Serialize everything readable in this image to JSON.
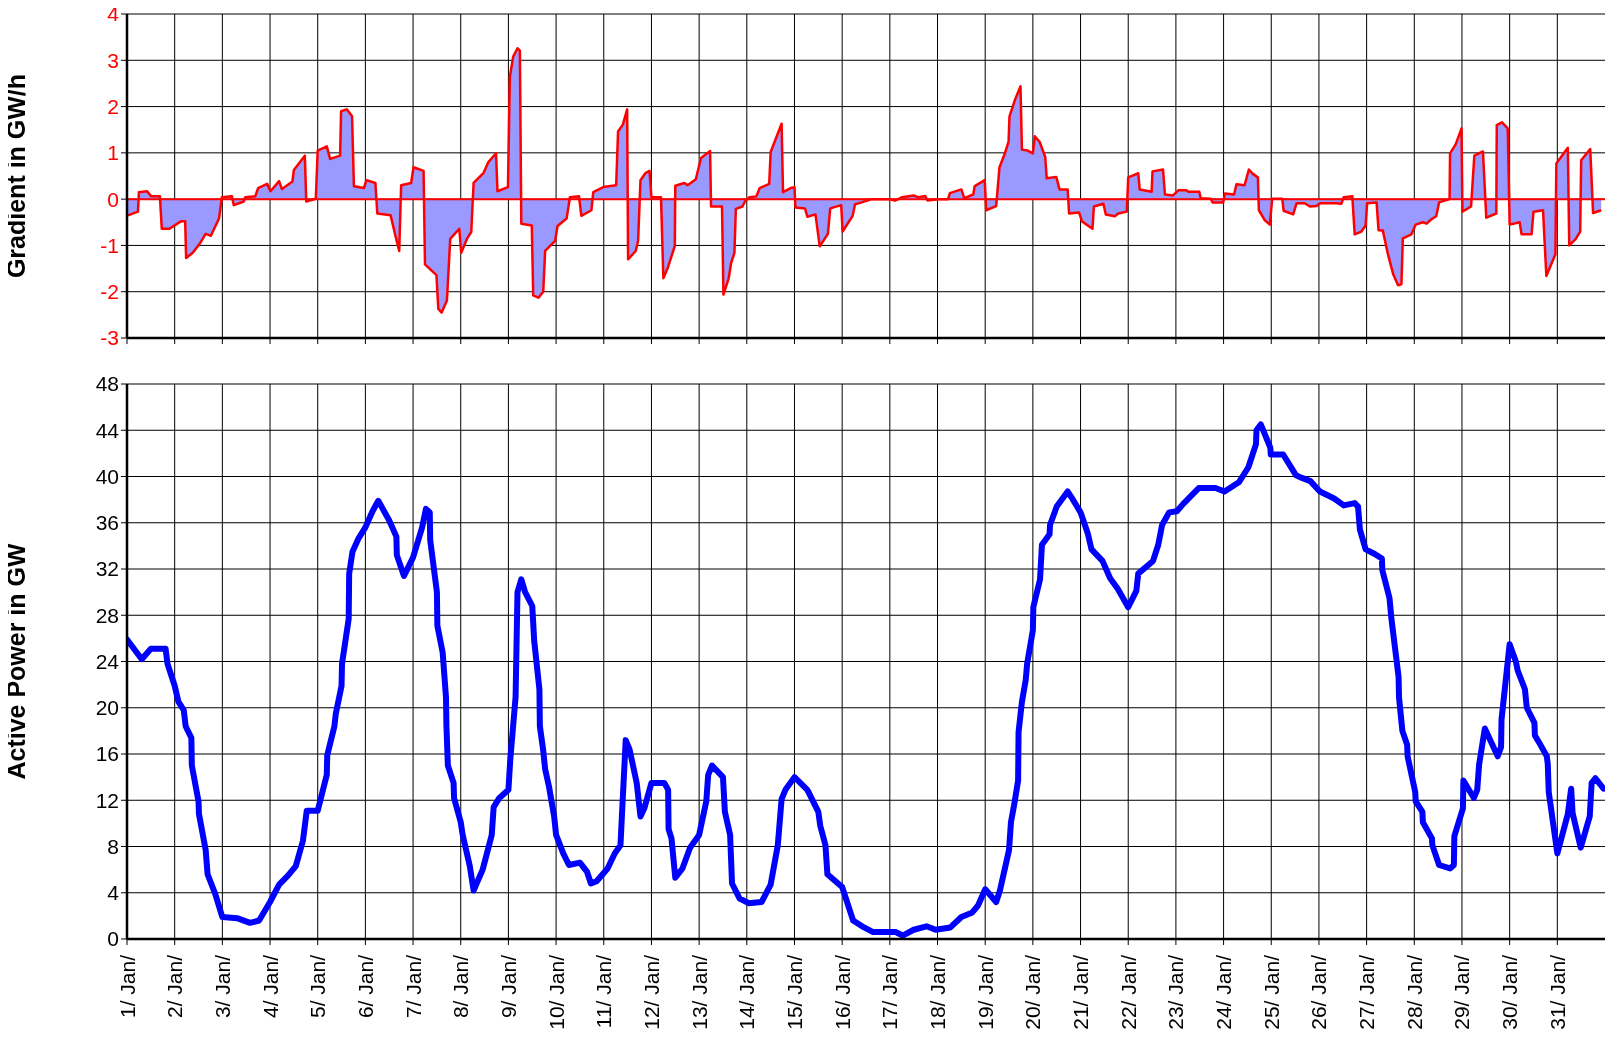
{
  "chart_data": [
    {
      "type": "area",
      "ylabel": "Gradient in GW/h",
      "xlim": [
        "--01-01",
        "--02-01"
      ],
      "xticks": [
        "--01-01",
        "--01-02",
        "--01-03",
        "--01-04",
        "--01-05",
        "--01-06",
        "--01-07",
        "--01-08",
        "--01-09",
        "--01-10",
        "--01-11",
        "--01-12",
        "--01-13",
        "--01-14",
        "--01-15",
        "--01-16",
        "--01-17",
        "--01-18",
        "--01-19",
        "--01-20",
        "--01-21",
        "--01-22",
        "--01-23",
        "--01-24",
        "--01-25",
        "--01-26",
        "--01-27",
        "--01-28",
        "--01-29",
        "--01-30",
        "--01-31"
      ],
      "ylim": [
        -3,
        4
      ],
      "yticks": [
        -3,
        -2,
        -1,
        0,
        1,
        2,
        3,
        4
      ],
      "grid": true,
      "tick_labels": "y",
      "ref_lines": [
        {
          "axis": "y",
          "value": 0,
          "color": "#ff0000"
        }
      ],
      "series": [
        {
          "color": "#9999ff",
          "x": [
            "--01-01T00:29",
            "--01-01T05:31",
            "--01-01T06:00",
            "--01-01T10:05",
            "--01-01T12:14",
            "--01-01T16:34",
            "--01-01T17:31",
            "--01-01T21:22",
            "--01-02T03:07",
            "--01-02T05:17",
            "--01-02T05:46",
            "--01-02T09:07",
            "--01-02T12:29",
            "--01-02T15:36",
            "--01-02T18:14",
            "--01-02T22:19",
            "--01-02T23:46",
            "--01-03T04:48",
            "--01-03T05:46",
            "--01-03T10:48",
            "--01-03T11:31",
            "--01-03T16:34",
            "--01-03T18:00",
            "--01-03T22:34",
            "--01-04T00:14",
            "--01-04T04:34",
            "--01-04T06:00",
            "--01-04T11:17",
            "--01-04T12:00",
            "--01-04T17:31",
            "--01-04T18:14",
            "--01-04T23:02",
            "--01-05T00:00",
            "--01-05T04:34",
            "--01-05T06:14",
            "--01-05T11:17",
            "--01-05T11:46",
            "--01-05T14:38",
            "--01-05T17:17",
            "--01-05T18:14",
            "--01-05T23:17",
            "--01-06T00:29",
            "--01-06T05:02",
            "--01-06T06:00",
            "--01-06T12:43",
            "--01-06T15:07",
            "--01-06T17:02",
            "--01-06T18:00",
            "--01-06T23:02",
            "--01-07T00:14",
            "--01-07T05:17",
            "--01-07T06:00",
            "--01-07T11:46",
            "--01-07T12:43",
            "--01-07T14:24",
            "--01-07T17:02",
            "--01-07T18:43",
            "--01-07T23:17",
            "--01-08T00:14",
            "--01-08T03:07",
            "--01-08T05:17",
            "--01-08T06:29",
            "--01-08T11:31",
            "--01-08T13:55",
            "--01-08T17:46",
            "--01-08T18:29",
            "--01-08T23:46",
            "--01-09T00:43",
            "--01-09T02:24",
            "--01-09T04:34",
            "--01-09T05:46",
            "--01-09T06:29",
            "--01-09T11:46",
            "--01-09T12:29",
            "--01-09T15:07",
            "--01-09T17:31",
            "--01-09T18:29",
            "--01-09T23:31",
            "--01-10T00:43",
            "--01-10T05:17",
            "--01-10T06:58",
            "--01-10T11:31",
            "--01-10T12:43",
            "--01-10T17:46",
            "--01-10T18:43",
            "--01-10T23:46",
            "--01-11T06:14",
            "--01-11T07:12",
            "--01-11T09:36",
            "--01-11T11:46",
            "--01-11T12:14",
            "--01-11T16:05",
            "--01-11T17:17",
            "--01-11T18:29",
            "--01-11T21:07",
            "--01-11T23:02",
            "--01-12T00:00",
            "--01-12T04:48",
            "--01-12T06:00",
            "--01-12T08:10",
            "--01-12T11:46",
            "--01-12T12:00",
            "--01-12T16:34",
            "--01-12T18:14",
            "--01-12T22:19",
            "--01-13T00:58",
            "--01-13T05:31",
            "--01-13T06:00",
            "--01-13T11:31",
            "--01-13T12:14",
            "--01-13T14:53",
            "--01-13T16:05",
            "--01-13T17:46",
            "--01-13T18:29",
            "--01-13T21:50",
            "--01-13T23:02",
            "--01-14T01:12",
            "--01-14T04:48",
            "--01-14T06:29",
            "--01-14T11:17",
            "--01-14T12:00",
            "--01-14T15:22",
            "--01-14T17:31",
            "--01-14T18:14",
            "--01-14T22:05",
            "--01-15T00:00",
            "--01-15T00:29",
            "--01-15T05:17",
            "--01-15T06:29",
            "--01-15T10:34",
            "--01-15T12:43",
            "--01-15T16:48",
            "--01-15T18:00",
            "--01-15T23:31",
            "--01-16T00:14",
            "--01-16T05:17",
            "--01-16T06:29",
            "--01-16T09:50",
            "--01-16T14:53",
            "--01-16T23:17",
            "--01-17T02:38",
            "--01-17T06:00",
            "--01-17T12:00",
            "--01-17T14:24",
            "--01-17T17:46",
            "--01-17T18:58",
            "--01-18T00:14",
            "--01-18T05:17",
            "--01-18T06:14",
            "--01-18T12:00",
            "--01-18T13:26",
            "--01-18T18:00",
            "--01-18T18:43",
            "--01-18T23:46",
            "--01-19T00:29",
            "--01-19T05:31",
            "--01-19T07:12",
            "--01-19T09:50",
            "--01-19T11:46",
            "--01-19T12:14",
            "--01-19T15:07",
            "--01-19T17:46",
            "--01-19T18:29",
            "--01-19T21:22",
            "--01-20T00:00",
            "--01-20T00:58",
            "--01-20T03:22",
            "--01-20T06:14",
            "--01-20T06:58",
            "--01-20T11:46",
            "--01-20T13:26",
            "--01-20T17:31",
            "--01-20T18:14",
            "--01-20T23:17",
            "--01-21T00:43",
            "--01-21T06:00",
            "--01-21T06:43",
            "--01-21T11:31",
            "--01-21T12:43",
            "--01-21T17:17",
            "--01-21T18:58",
            "--01-21T23:17",
            "--01-22T00:00",
            "--01-22T02:10",
            "--01-22T05:02",
            "--01-22T05:46",
            "--01-22T11:46",
            "--01-22T12:14",
            "--01-22T17:31",
            "--01-22T18:29",
            "--01-22T22:34",
            "--01-23T01:12",
            "--01-23T05:17",
            "--01-23T06:14",
            "--01-23T11:46",
            "--01-23T12:29",
            "--01-23T17:31",
            "--01-23T18:29",
            "--01-23T23:46",
            "--01-24T00:43",
            "--01-24T05:17",
            "--01-24T06:29",
            "--01-24T10:34",
            "--01-24T12:43",
            "--01-24T14:53",
            "--01-24T17:17",
            "--01-24T17:46",
            "--01-24T20:38",
            "--01-24T23:17",
            "--01-25T00:29",
            "--01-25T05:31",
            "--01-25T06:14",
            "--01-25T11:02",
            "--01-25T12:43",
            "--01-25T16:48",
            "--01-25T19:26",
            "--01-25T22:48",
            "--01-26T00:29",
            "--01-26T08:38",
            "--01-26T11:17",
            "--01-26T12:29",
            "--01-26T16:48",
            "--01-26T18:00",
            "--01-26T21:22",
            "--01-26T23:31",
            "--01-27T00:14",
            "--01-27T05:02",
            "--01-27T06:00",
            "--01-27T08:10",
            "--01-27T10:48",
            "--01-27T13:26",
            "--01-27T15:50",
            "--01-27T17:31",
            "--01-27T18:14",
            "--01-27T22:34",
            "--01-28T00:43",
            "--01-28T04:19",
            "--01-28T06:14",
            "--01-28T08:24",
            "--01-28T11:02",
            "--01-28T12:29",
            "--01-28T17:46",
            "--01-28T18:00",
            "--01-28T20:53",
            "--01-28T23:46",
            "--01-29T00:14",
            "--01-29T04:34",
            "--01-29T06:14",
            "--01-29T10:34",
            "--01-29T12:14",
            "--01-29T17:17",
            "--01-29T17:31",
            "--01-29T20:10",
            "--01-29T23:02",
            "--01-30T00:00",
            "--01-30T05:02",
            "--01-30T06:00",
            "--01-30T11:02",
            "--01-30T12:00",
            "--01-30T16:48",
            "--01-30T18:29",
            "--01-30T23:02",
            "--01-30T23:31",
            "--01-31T05:17",
            "--01-31T06:00",
            "--01-31T09:07",
            "--01-31T11:31",
            "--01-31T12:00",
            "--01-31T16:34",
            "--01-31T18:00",
            "--01-31T22:05"
          ],
          "values": [
            -0.35,
            -0.27,
            0.15,
            0.17,
            0.06,
            0.06,
            -0.64,
            -0.64,
            -0.48,
            -0.48,
            -1.27,
            -1.16,
            -0.97,
            -0.75,
            -0.79,
            -0.42,
            0.04,
            0.06,
            -0.13,
            -0.05,
            0.04,
            0.06,
            0.24,
            0.33,
            0.17,
            0.39,
            0.22,
            0.38,
            0.63,
            0.94,
            -0.05,
            0.01,
            1.05,
            1.14,
            0.87,
            0.94,
            1.9,
            1.94,
            1.79,
            0.28,
            0.24,
            0.41,
            0.35,
            -0.31,
            -0.35,
            -0.79,
            -1.12,
            0.3,
            0.35,
            0.69,
            0.61,
            -1.41,
            -1.64,
            -2.37,
            -2.45,
            -2.19,
            -0.86,
            -0.64,
            -1.16,
            -0.86,
            -0.71,
            0.35,
            0.57,
            0.8,
            0.99,
            0.17,
            0.26,
            2.64,
            3.08,
            3.26,
            3.21,
            -0.53,
            -0.57,
            -2.08,
            -2.13,
            -2.0,
            -1.12,
            -0.9,
            -0.58,
            -0.42,
            0.04,
            0.06,
            -0.36,
            -0.24,
            0.15,
            0.26,
            0.3,
            1.46,
            1.61,
            1.94,
            -1.3,
            -1.12,
            -0.9,
            0.41,
            0.57,
            0.61,
            0.04,
            0.04,
            -1.71,
            -1.49,
            -1.01,
            0.29,
            0.35,
            0.3,
            0.43,
            0.89,
            1.04,
            -0.16,
            -0.16,
            -2.06,
            -1.71,
            -1.38,
            -1.16,
            -0.21,
            -0.16,
            -0.05,
            0.04,
            0.06,
            0.24,
            0.33,
            1.02,
            1.39,
            1.63,
            0.15,
            0.24,
            0.26,
            -0.18,
            -0.2,
            -0.38,
            -0.33,
            -1.02,
            -0.75,
            -0.2,
            -0.13,
            -0.7,
            -0.36,
            -0.11,
            -0.07,
            0,
            0,
            -0.03,
            0.04,
            0.08,
            0.04,
            0.07,
            -0.03,
            0,
            0,
            0.13,
            0.21,
            0.02,
            0.1,
            0.28,
            0.41,
            -0.24,
            -0.15,
            0.69,
            0.98,
            1.24,
            1.79,
            2.16,
            2.44,
            1.07,
            1.05,
            0.99,
            1.36,
            1.24,
            0.91,
            0.45,
            0.48,
            0.21,
            0.21,
            -0.31,
            -0.29,
            -0.48,
            -0.64,
            -0.16,
            -0.1,
            -0.33,
            -0.37,
            -0.31,
            -0.27,
            0.47,
            0.51,
            0.56,
            0.21,
            0.16,
            0.6,
            0.64,
            0.1,
            0.08,
            0.19,
            0.19,
            0.16,
            0.16,
            0.02,
            0.01,
            -0.07,
            -0.07,
            0.12,
            0.1,
            0.32,
            0.3,
            0.64,
            0.54,
            0.47,
            -0.24,
            -0.45,
            -0.55,
            0.01,
            0.01,
            -0.25,
            -0.33,
            -0.09,
            -0.09,
            -0.16,
            -0.15,
            -0.09,
            -0.09,
            -0.1,
            0.04,
            0.06,
            -0.76,
            -0.7,
            -0.57,
            -0.09,
            -0.07,
            -0.67,
            -0.68,
            -1.2,
            -1.63,
            -1.86,
            -1.84,
            -0.85,
            -0.76,
            -0.55,
            -0.5,
            -0.53,
            -0.44,
            -0.37,
            -0.07,
            0,
            0.99,
            1.19,
            1.53,
            -0.27,
            -0.16,
            0.94,
            1.03,
            -0.4,
            -0.31,
            1.6,
            1.66,
            1.53,
            -0.55,
            -0.5,
            -0.76,
            -0.76,
            -0.27,
            -0.24,
            -1.66,
            -1.19,
            0.77,
            1.11,
            -1.0,
            -0.87,
            -0.7,
            0.84,
            1.08,
            -0.3,
            -0.24
          ]
        }
      ]
    },
    {
      "type": "line",
      "ylabel": "Active Power in GW",
      "xlim": [
        "--01-01",
        "--02-01"
      ],
      "xticks": [
        {
          "value": "--01-01",
          "label": "1/ Jan/"
        },
        {
          "value": "--01-02",
          "label": "2/ Jan/"
        },
        {
          "value": "--01-03",
          "label": "3/ Jan/"
        },
        {
          "value": "--01-04",
          "label": "4/ Jan/"
        },
        {
          "value": "--01-05",
          "label": "5/ Jan/"
        },
        {
          "value": "--01-06",
          "label": "6/ Jan/"
        },
        {
          "value": "--01-07",
          "label": "7/ Jan/"
        },
        {
          "value": "--01-08",
          "label": "8/ Jan/"
        },
        {
          "value": "--01-09",
          "label": "9/ Jan/"
        },
        {
          "value": "--01-10",
          "label": "10/ Jan/"
        },
        {
          "value": "--01-11",
          "label": "11/ Jan/"
        },
        {
          "value": "--01-12",
          "label": "12/ Jan/"
        },
        {
          "value": "--01-13",
          "label": "13/ Jan/"
        },
        {
          "value": "--01-14",
          "label": "14/ Jan/"
        },
        {
          "value": "--01-15",
          "label": "15/ Jan/"
        },
        {
          "value": "--01-16",
          "label": "16/ Jan/"
        },
        {
          "value": "--01-17",
          "label": "17/ Jan/"
        },
        {
          "value": "--01-18",
          "label": "18/ Jan/"
        },
        {
          "value": "--01-19",
          "label": "19/ Jan/"
        },
        {
          "value": "--01-20",
          "label": "20/ Jan/"
        },
        {
          "value": "--01-21",
          "label": "21/ Jan/"
        },
        {
          "value": "--01-22",
          "label": "22/ Jan/"
        },
        {
          "value": "--01-23",
          "label": "23/ Jan/"
        },
        {
          "value": "--01-24",
          "label": "24/ Jan/"
        },
        {
          "value": "--01-25",
          "label": "25/ Jan/"
        },
        {
          "value": "--01-26",
          "label": "26/ Jan/"
        },
        {
          "value": "--01-27",
          "label": "27/ Jan/"
        },
        {
          "value": "--01-28",
          "label": "28/ Jan/"
        },
        {
          "value": "--01-29",
          "label": "29/ Jan/"
        },
        {
          "value": "--01-30",
          "label": "30/ Jan/"
        },
        {
          "value": "--01-31",
          "label": "31/ Jan/"
        }
      ],
      "ylim": [
        0,
        48
      ],
      "yticks": [
        0,
        4,
        8,
        12,
        16,
        20,
        24,
        28,
        32,
        36,
        40,
        44,
        48
      ],
      "grid": true,
      "series": [
        {
          "color": "#0000ff",
          "x": [
            "--01-01T00:00",
            "--01-01T07:26",
            "--01-01T12:00",
            "--01-01T19:26",
            "--01-01T20:24",
            "--01-02T00:00",
            "--01-02T01:55",
            "--01-02T04:34",
            "--01-02T05:31",
            "--01-02T08:24",
            "--01-02T08:38",
            "--01-02T12:00",
            "--01-02T12:14",
            "--01-02T15:36",
            "--01-02T16:34",
            "--01-02T20:24",
            "--01-03T00:00",
            "--01-03T07:26",
            "--01-03T13:55",
            "--01-03T18:29",
            "--01-04T00:00",
            "--01-04T04:34",
            "--01-04T09:07",
            "--01-04T12:58",
            "--01-04T16:34",
            "--01-04T18:29",
            "--01-05T00:00",
            "--01-05T04:34",
            "--01-05T04:48",
            "--01-05T08:24",
            "--01-05T09:07",
            "--01-05T12:00",
            "--01-05T12:14",
            "--01-05T15:36",
            "--01-05T15:50",
            "--01-05T17:31",
            "--01-05T20:24",
            "--01-06T00:00",
            "--01-06T03:36",
            "--01-06T06:29",
            "--01-06T12:00",
            "--01-06T15:36",
            "--01-06T15:50",
            "--01-06T19:26",
            "--01-07T00:00",
            "--01-07T04:34",
            "--01-07T06:29",
            "--01-07T08:24",
            "--01-07T08:38",
            "--01-07T12:00",
            "--01-07T12:14",
            "--01-07T14:53",
            "--01-07T16:34",
            "--01-07T16:48",
            "--01-07T17:31",
            "--01-07T20:24",
            "--01-07T20:38",
            "--01-08T00:00",
            "--01-08T00:58",
            "--01-08T04:34",
            "--01-08T06:29",
            "--01-08T11:02",
            "--01-08T15:36",
            "--01-08T16:34",
            "--01-08T19:26",
            "--01-09T00:00",
            "--01-09T00:58",
            "--01-09T03:36",
            "--01-09T04:34",
            "--01-09T06:29",
            "--01-09T08:24",
            "--01-09T12:00",
            "--01-09T12:58",
            "--01-09T15:36",
            "--01-09T15:50",
            "--01-09T17:31",
            "--01-09T18:29",
            "--01-09T20:24",
            "--01-09T23:02",
            "--01-10T00:00",
            "--01-10T03:36",
            "--01-10T06:29",
            "--01-10T12:00",
            "--01-10T15:36",
            "--01-10T17:31",
            "--01-10T20:24",
            "--01-11T01:55",
            "--01-11T05:31",
            "--01-11T08:24",
            "--01-11T09:07",
            "--01-11T11:02",
            "--01-11T12:58",
            "--01-11T16:34",
            "--01-11T18:29",
            "--01-11T20:24",
            "--01-12T00:00",
            "--01-12T06:29",
            "--01-12T08:24",
            "--01-12T08:38",
            "--01-12T10:05",
            "--01-12T12:00",
            "--01-12T15:36",
            "--01-12T19:26",
            "--01-13T00:00",
            "--01-13T03:36",
            "--01-13T04:34",
            "--01-13T06:29",
            "--01-13T12:00",
            "--01-13T12:58",
            "--01-13T15:36",
            "--01-13T16:34",
            "--01-13T20:24",
            "--01-14T00:58",
            "--01-14T07:26",
            "--01-14T12:00",
            "--01-14T15:36",
            "--01-14T17:31",
            "--01-14T19:26",
            "--01-15T00:00",
            "--01-15T06:29",
            "--01-15T12:00",
            "--01-15T12:58",
            "--01-15T15:36",
            "--01-15T16:34",
            "--01-16T00:00",
            "--01-16T03:36",
            "--01-16T05:31",
            "--01-16T11:02",
            "--01-16T15:36",
            "--01-17T02:53",
            "--01-17T06:29",
            "--01-17T12:00",
            "--01-17T18:29",
            "--01-17T23:02",
            "--01-18T06:29",
            "--01-18T12:00",
            "--01-18T17:31",
            "--01-18T20:24",
            "--01-19T00:00",
            "--01-19T05:31",
            "--01-19T07:26",
            "--01-19T12:00",
            "--01-19T12:58",
            "--01-19T14:53",
            "--01-19T16:34",
            "--01-19T16:48",
            "--01-19T18:29",
            "--01-19T20:24",
            "--01-19T21:07",
            "--01-20T00:00",
            "--01-20T00:14",
            "--01-20T03:36",
            "--01-20T04:34",
            "--01-20T08:24",
            "--01-20T08:38",
            "--01-20T12:00",
            "--01-20T17:31",
            "--01-20T19:26",
            "--01-21T00:00",
            "--01-21T03:36",
            "--01-21T05:31",
            "--01-21T11:02",
            "--01-21T14:53",
            "--01-21T18:43",
            "--01-22T00:00",
            "--01-22T04:05",
            "--01-22T05:02",
            "--01-22T12:29",
            "--01-22T15:07",
            "--01-22T17:02",
            "--01-22T20:38",
            "--01-23T00:29",
            "--01-23T04:05",
            "--01-23T08:38",
            "--01-23T11:31",
            "--01-23T19:55",
            "--01-24T00:29",
            "--01-24T07:41",
            "--01-24T12:29",
            "--01-24T16:19",
            "--01-24T16:34",
            "--01-24T18:43",
            "--01-24T23:31",
            "--01-24T23:46",
            "--01-25T06:00",
            "--01-25T12:29",
            "--01-25T15:07",
            "--01-25T19:41",
            "--01-26T00:29",
            "--01-26T07:41",
            "--01-26T12:29",
            "--01-26T18:00",
            "--01-26T19:41",
            "--01-26T20:38",
            "--01-26T23:31",
            "--01-27T04:05",
            "--01-27T07:41",
            "--01-27T07:55",
            "--01-27T11:31",
            "--01-27T12:29",
            "--01-27T16:05",
            "--01-27T16:19",
            "--01-27T18:00",
            "--01-27T20:24",
            "--01-27T20:38",
            "--01-28T00:29",
            "--01-28T00:43",
            "--01-28T04:05",
            "--01-28T04:19",
            "--01-28T08:53",
            "--01-28T09:07",
            "--01-28T12:29",
            "--01-28T18:00",
            "--01-28T19:55",
            "--01-28T20:10",
            "--01-29T00:29",
            "--01-29T00:43",
            "--01-29T06:00",
            "--01-29T07:41",
            "--01-29T08:38",
            "--01-29T11:31",
            "--01-29T18:00",
            "--01-29T19:41",
            "--01-29T19:55",
            "--01-30T00:00",
            "--01-30T03:07",
            "--01-30T04:05",
            "--01-30T07:41",
            "--01-30T08:38",
            "--01-30T12:29",
            "--01-30T12:43",
            "--01-30T15:07",
            "--01-30T18:43",
            "--01-30T19:12",
            "--01-30T19:41",
            "--01-31T00:00",
            "--01-31T05:17",
            "--01-31T06:58",
            "--01-31T07:41",
            "--01-31T11:46",
            "--01-31T16:19",
            "--01-31T17:17",
            "--01-31T19:12",
            "--01-31T23:17"
          ],
          "values": [
            25.9,
            24.2,
            25.1,
            25.1,
            23.8,
            21.9,
            20.5,
            19.8,
            18.4,
            17.4,
            15.0,
            11.9,
            10.8,
            7.7,
            5.6,
            3.9,
            1.9,
            1.8,
            1.4,
            1.6,
            3.2,
            4.7,
            5.5,
            6.3,
            8.5,
            11.1,
            11.1,
            14.2,
            15.9,
            18.4,
            19.5,
            21.9,
            23.8,
            27.7,
            31.6,
            33.5,
            34.6,
            35.6,
            37.0,
            37.9,
            36.2,
            34.8,
            33.2,
            31.4,
            33.0,
            35.6,
            37.2,
            36.9,
            34.5,
            30.0,
            27.1,
            24.8,
            20.9,
            18.4,
            15.0,
            13.5,
            12.2,
            10.1,
            9.0,
            6.3,
            4.2,
            6.0,
            9.0,
            11.4,
            12.2,
            12.9,
            15.6,
            20.9,
            30.0,
            31.1,
            30.0,
            28.8,
            25.8,
            21.6,
            18.4,
            16.3,
            14.7,
            13.2,
            10.6,
            9.0,
            7.4,
            6.4,
            6.6,
            5.8,
            4.8,
            5.0,
            6.1,
            7.4,
            8.1,
            10.6,
            17.2,
            16.4,
            13.5,
            10.6,
            11.3,
            13.5,
            13.5,
            12.9,
            9.5,
            8.7,
            5.3,
            6.1,
            7.9,
            9.0,
            11.9,
            14.2,
            15.0,
            14.0,
            11.0,
            9.0,
            4.8,
            3.5,
            3.1,
            3.2,
            4.7,
            8.1,
            12.1,
            12.9,
            14.0,
            12.9,
            11.0,
            9.8,
            8.1,
            5.6,
            4.5,
            2.6,
            1.6,
            1.0,
            0.6,
            0.6,
            0.3,
            0.8,
            1.1,
            0.8,
            1.0,
            1.9,
            2.3,
            2.9,
            4.3,
            3.2,
            4.2,
            7.7,
            10.1,
            11.9,
            13.7,
            17.9,
            20.5,
            22.4,
            23.8,
            26.7,
            28.7,
            31.1,
            34.1,
            35.0,
            35.8,
            37.4,
            38.7,
            38.2,
            36.9,
            35.1,
            33.7,
            32.7,
            31.2,
            30.3,
            28.7,
            30.1,
            31.6,
            32.7,
            34.1,
            35.8,
            36.9,
            37.0,
            37.7,
            38.5,
            39.0,
            39.0,
            38.7,
            39.5,
            40.8,
            42.8,
            44.0,
            44.5,
            42.5,
            41.9,
            41.9,
            40.1,
            39.9,
            39.6,
            38.7,
            38.1,
            37.5,
            37.7,
            37.4,
            35.4,
            33.7,
            33.3,
            32.9,
            31.9,
            29.5,
            27.7,
            22.7,
            20.9,
            18.0,
            16.8,
            15.8,
            12.7,
            11.9,
            11.0,
            10.1,
            8.7,
            8.1,
            6.4,
            6.1,
            6.4,
            8.9,
            11.3,
            13.7,
            12.2,
            12.9,
            15.1,
            18.2,
            15.8,
            16.6,
            19.0,
            25.5,
            24.0,
            23.2,
            21.6,
            20.0,
            18.7,
            17.6,
            16.9,
            15.8,
            15.1,
            12.7,
            7.4,
            10.8,
            13.0,
            10.9,
            7.9,
            10.6,
            13.5,
            13.9,
            13.0
          ]
        }
      ]
    }
  ]
}
